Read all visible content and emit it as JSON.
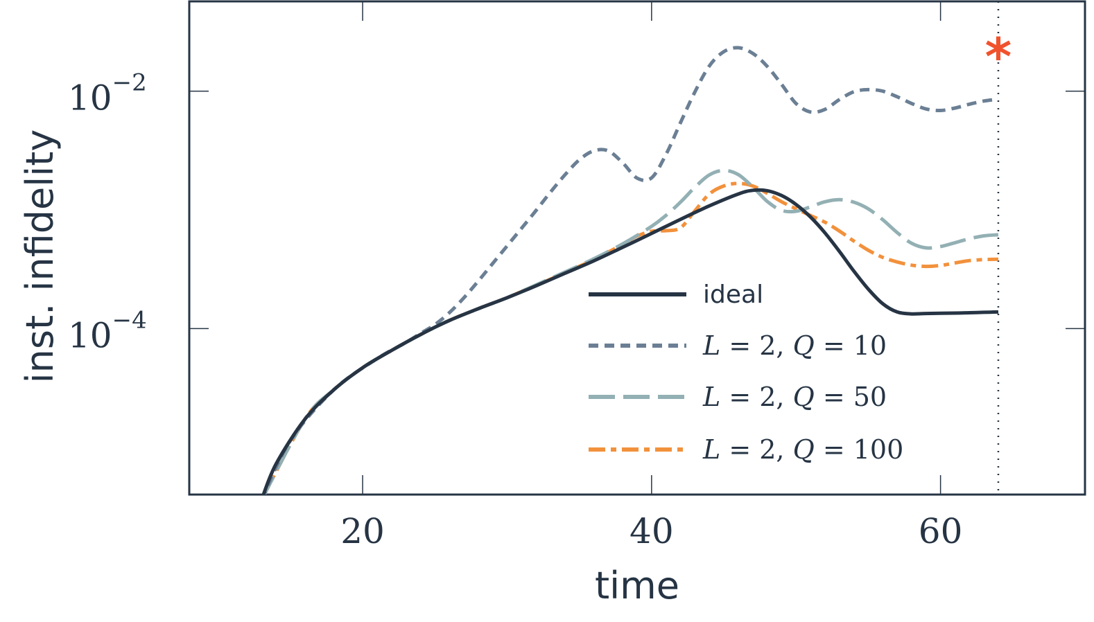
{
  "chart_data": {
    "type": "line",
    "xlabel": "time",
    "ylabel": "inst. infidelity",
    "xlim": [
      8,
      70
    ],
    "ylim": [
      4e-06,
      0.057
    ],
    "yscale": "log",
    "x_ticks": [
      {
        "value": 20,
        "label": "20"
      },
      {
        "value": 40,
        "label": "40"
      },
      {
        "value": 60,
        "label": "60"
      }
    ],
    "y_ticks": [
      {
        "value": 0.0001,
        "base": "10",
        "exp": "−4"
      },
      {
        "value": 0.01,
        "base": "10",
        "exp": "−2"
      }
    ],
    "grid": false,
    "legend_position": "bottom-right",
    "vline": {
      "x": 64,
      "style": "dotted"
    },
    "marker": {
      "x": 64,
      "y": 0.023,
      "symbol": "*",
      "color": "#f0522d"
    },
    "series": [
      {
        "name": "ideal",
        "color": "#263444",
        "dash": "solid",
        "points": [
          [
            13,
            3.6e-06
          ],
          [
            14,
            7.2e-06
          ],
          [
            16,
            1.72e-05
          ],
          [
            18,
            3.05e-05
          ],
          [
            20,
            4.68e-05
          ],
          [
            22,
            6.54e-05
          ],
          [
            24,
            8.9e-05
          ],
          [
            26,
            0.000117
          ],
          [
            28,
            0.000147
          ],
          [
            30,
            0.000182
          ],
          [
            32,
            0.000229
          ],
          [
            34,
            0.000292
          ],
          [
            36,
            0.000372
          ],
          [
            38,
            0.000484
          ],
          [
            40,
            0.000633
          ],
          [
            42,
            0.000832
          ],
          [
            44,
            0.00108
          ],
          [
            46,
            0.00136
          ],
          [
            47,
            0.00146
          ],
          [
            48,
            0.00145
          ],
          [
            49,
            0.00132
          ],
          [
            50,
            0.00111
          ],
          [
            51,
            0.000871
          ],
          [
            52,
            0.00064
          ],
          [
            53,
            0.000447
          ],
          [
            54,
            0.000305
          ],
          [
            55,
            0.000215
          ],
          [
            56,
            0.000162
          ],
          [
            57,
            0.000138
          ],
          [
            58,
            0.000133
          ],
          [
            59,
            0.000134
          ],
          [
            61,
            0.000135
          ],
          [
            62,
            0.000136
          ],
          [
            63,
            0.000137
          ],
          [
            64,
            0.000138
          ]
        ]
      },
      {
        "name": "L = 2, Q = 10",
        "legend": {
          "lhs_var": "L",
          "lhs_val": "2",
          "rhs_var": "Q",
          "rhs_val": "10"
        },
        "color": "#6b7f94",
        "dash": "14,9",
        "points": [
          [
            13,
            3.6e-06
          ],
          [
            15,
            1.14e-05
          ],
          [
            18,
            3.05e-05
          ],
          [
            21,
            5.58e-05
          ],
          [
            23,
            7.63e-05
          ],
          [
            24,
            9.1e-05
          ],
          [
            25,
            0.000108
          ],
          [
            26,
            0.000136
          ],
          [
            27,
            0.000181
          ],
          [
            28,
            0.000251
          ],
          [
            29,
            0.000353
          ],
          [
            30,
            0.000497
          ],
          [
            31,
            0.000699
          ],
          [
            32,
            0.000986
          ],
          [
            33,
            0.00141
          ],
          [
            34,
            0.00197
          ],
          [
            35,
            0.00264
          ],
          [
            36,
            0.00314
          ],
          [
            37,
            0.00314
          ],
          [
            38,
            0.00249
          ],
          [
            39,
            0.00185
          ],
          [
            40,
            0.00186
          ],
          [
            41,
            0.00293
          ],
          [
            42,
            0.00542
          ],
          [
            43,
            0.00986
          ],
          [
            44,
            0.0163
          ],
          [
            45,
            0.0215
          ],
          [
            46,
            0.0232
          ],
          [
            47,
            0.0208
          ],
          [
            48,
            0.0162
          ],
          [
            49,
            0.0114
          ],
          [
            50,
            0.00787
          ],
          [
            51,
            0.00667
          ],
          [
            52,
            0.00702
          ],
          [
            53,
            0.00848
          ],
          [
            54,
            0.00987
          ],
          [
            55,
            0.0103
          ],
          [
            56,
            0.00999
          ],
          [
            57,
            0.00896
          ],
          [
            58,
            0.00787
          ],
          [
            59,
            0.00708
          ],
          [
            60,
            0.00687
          ],
          [
            61,
            0.0072
          ],
          [
            62,
            0.00776
          ],
          [
            63,
            0.00826
          ],
          [
            64,
            0.00855
          ]
        ]
      },
      {
        "name": "L = 2, Q = 50",
        "legend": {
          "lhs_var": "L",
          "lhs_val": "2",
          "rhs_var": "Q",
          "rhs_val": "50"
        },
        "color": "#93b0b4",
        "dash": "38,12",
        "points": [
          [
            13,
            3.6e-06
          ],
          [
            16,
            1.72e-05
          ],
          [
            18,
            3.05e-05
          ],
          [
            20,
            4.68e-05
          ],
          [
            22,
            6.54e-05
          ],
          [
            24,
            8.9e-05
          ],
          [
            26,
            0.000117
          ],
          [
            28,
            0.000147
          ],
          [
            30,
            0.000182
          ],
          [
            32,
            0.000233
          ],
          [
            34,
            0.000299
          ],
          [
            36,
            0.000387
          ],
          [
            38,
            0.000517
          ],
          [
            40,
            0.000726
          ],
          [
            41,
            0.000899
          ],
          [
            42,
            0.00116
          ],
          [
            43,
            0.00155
          ],
          [
            44,
            0.00197
          ],
          [
            45,
            0.00215
          ],
          [
            46,
            0.00198
          ],
          [
            47,
            0.00156
          ],
          [
            48,
            0.00118
          ],
          [
            49,
            0.000989
          ],
          [
            50,
            0.000973
          ],
          [
            51,
            0.00106
          ],
          [
            52,
            0.00117
          ],
          [
            53,
            0.00122
          ],
          [
            54,
            0.00116
          ],
          [
            55,
            0.00102
          ],
          [
            56,
            0.000826
          ],
          [
            57,
            0.000643
          ],
          [
            58,
            0.000523
          ],
          [
            59,
            0.000478
          ],
          [
            60,
            0.000491
          ],
          [
            61,
            0.000529
          ],
          [
            62,
            0.000571
          ],
          [
            63,
            0.000604
          ],
          [
            64,
            0.000617
          ]
        ]
      },
      {
        "name": "L = 2, Q = 100",
        "legend": {
          "lhs_var": "L",
          "lhs_val": "2",
          "rhs_var": "Q",
          "rhs_val": "100"
        },
        "color": "#f2913c",
        "dash": "24,8,8,8",
        "points": [
          [
            13,
            3.6e-06
          ],
          [
            16,
            1.72e-05
          ],
          [
            18,
            3.05e-05
          ],
          [
            20,
            4.68e-05
          ],
          [
            22,
            6.54e-05
          ],
          [
            24,
            8.9e-05
          ],
          [
            26,
            0.000117
          ],
          [
            28,
            0.000147
          ],
          [
            30,
            0.000182
          ],
          [
            32,
            0.000231
          ],
          [
            34,
            0.000295
          ],
          [
            36,
            0.000382
          ],
          [
            38,
            0.000512
          ],
          [
            39,
            0.000601
          ],
          [
            40,
            0.000661
          ],
          [
            41,
            0.000668
          ],
          [
            42,
            0.000705
          ],
          [
            43,
            0.000983
          ],
          [
            44,
            0.00136
          ],
          [
            45,
            0.00159
          ],
          [
            46,
            0.00167
          ],
          [
            47,
            0.00159
          ],
          [
            48,
            0.00138
          ],
          [
            49,
            0.00117
          ],
          [
            50,
            0.00102
          ],
          [
            51,
            0.000896
          ],
          [
            52,
            0.000787
          ],
          [
            53,
            0.000664
          ],
          [
            54,
            0.000546
          ],
          [
            55,
            0.000457
          ],
          [
            56,
            0.000398
          ],
          [
            57,
            0.000364
          ],
          [
            58,
            0.000342
          ],
          [
            59,
            0.000334
          ],
          [
            60,
            0.00034
          ],
          [
            61,
            0.000357
          ],
          [
            62,
            0.000374
          ],
          [
            63,
            0.000381
          ],
          [
            64,
            0.000384
          ]
        ]
      }
    ]
  }
}
